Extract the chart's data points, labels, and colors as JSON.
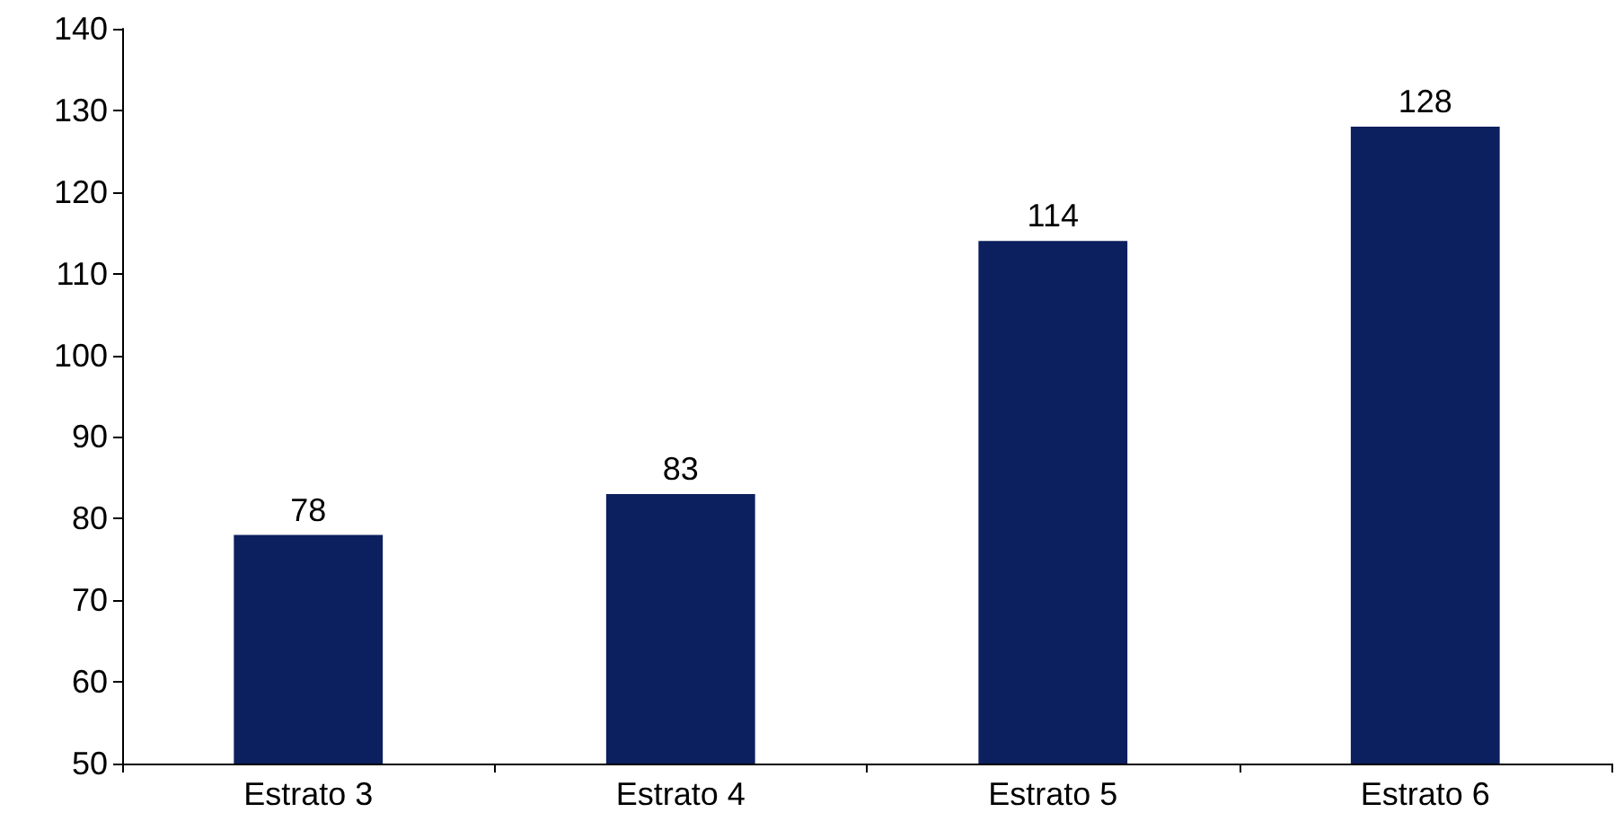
{
  "chart_data": {
    "type": "bar",
    "categories": [
      "Estrato 3",
      "Estrato 4",
      "Estrato 5",
      "Estrato 6"
    ],
    "values": [
      78,
      83,
      114,
      128
    ],
    "color": "#0c1f5e",
    "ylim": [
      50,
      140
    ],
    "yticks": [
      50,
      60,
      70,
      80,
      90,
      100,
      110,
      120,
      130,
      140
    ],
    "grid": false,
    "data_labels": true
  }
}
